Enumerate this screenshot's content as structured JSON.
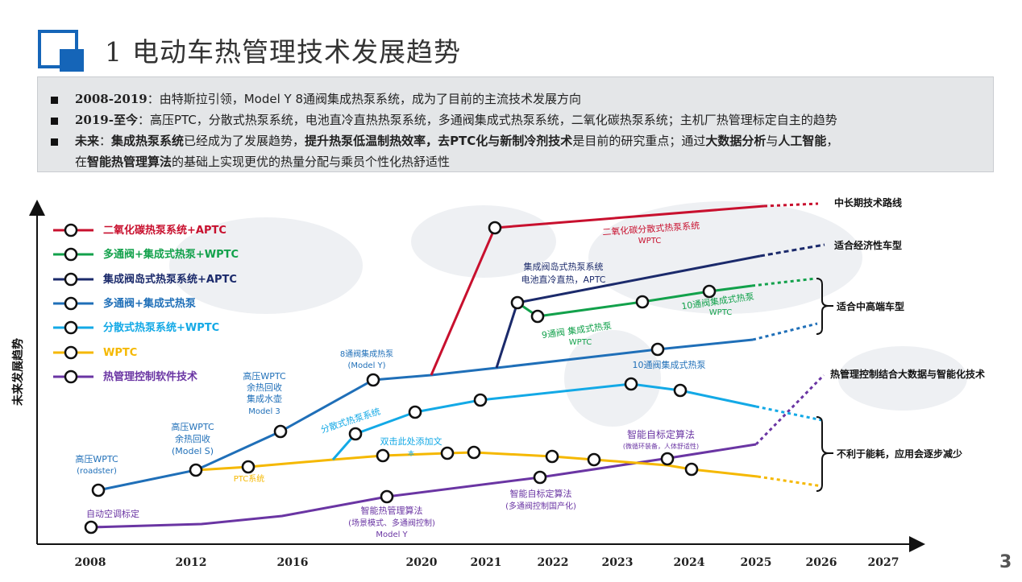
{
  "header": {
    "number": "1",
    "title": "电动车热管理技术发展趋势"
  },
  "summary": {
    "row1": {
      "years": "2008-2019",
      "text": "：由特斯拉引领，Model Y 8通阀集成热泵系统，成为了目前的主流技术发展方向"
    },
    "row2": {
      "years": "2019-至今",
      "text": "：高压PTC，分散式热泵系统，电池直冷直热热泵系统，多通阀集成式热泵系统，二氧化碳热泵系统；主机厂热管理标定自主的趋势"
    },
    "row3": {
      "lead": "未来",
      "p1": "：",
      "b1": "集成热泵系统",
      "p2": "已经成为了发展趋势，",
      "b2": "提升热泵低温制热效率，去PTC化与新制冷剂技术",
      "p3": "是目前的研究重点；通过",
      "b3": "大数据分析",
      "p4": "与",
      "b4": "人工智能",
      "p5": "，",
      "cont_b": "智能热管理算法",
      "cont_pre": "在",
      "cont_post": "的基础上实现更优的热量分配与乘员个性化热舒适性"
    }
  },
  "axis": {
    "ylabel": "未来发展趋势",
    "ticks": [
      "2008",
      "2012",
      "2016",
      "2020",
      "2021",
      "2022",
      "2023",
      "2024",
      "2025",
      "2026",
      "2027"
    ]
  },
  "legend": [
    {
      "label": "二氧化碳热泵系统+APTC",
      "color": "#c8102e"
    },
    {
      "label": "多通阀+集成式热泵+WPTC",
      "color": "#12a14b"
    },
    {
      "label": "集成阀岛式热泵系统+APTC",
      "color": "#1b2a6b"
    },
    {
      "label": "多通阀+集成式热泵",
      "color": "#1f6fb8"
    },
    {
      "label": "分散式热泵系统+WPTC",
      "color": "#13a9e6"
    },
    {
      "label": "WPTC",
      "color": "#f5b800"
    },
    {
      "label": "热管理控制软件技术",
      "color": "#6a35a3"
    }
  ],
  "annotations": {
    "a1": "高压WPTC",
    "a1b": "(roadster)",
    "a2": "高压WPTC",
    "a2b": "余热回收",
    "a2c": "(Model S)",
    "a3": "高压WPTC",
    "a3b": "余热回收",
    "a3c": "集成水壶",
    "a3d": "Model 3",
    "a4": "8通阀集成热泵",
    "a4b": "(Model Y)",
    "a5": "分散式热泵系统",
    "a6": "双击此处添加文",
    "a6b": "本",
    "a7": "PTC系统",
    "a8": "自动空调标定",
    "a9": "智能热管理算法",
    "a9b": "(场景模式、多通阀控制)",
    "a9c": "Model Y",
    "a10": "智能自标定算法",
    "a10b": "(多通阀控制国产化)",
    "a11": "智能自标定算法",
    "a11b": "(微循环装备，人体舒适性)",
    "a12": "10通阀集成式热泵",
    "a13": "集成阀岛式热泵系统",
    "a13b": "电池直冷直热，APTC",
    "a14": "9通阀 集成式热泵",
    "a14b": "WPTC",
    "a15": "10通阀集成式热泵",
    "a15b": "WPTC",
    "a16": "二氧化碳分散式热泵系统",
    "a16b": "WPTC"
  },
  "right_labels": {
    "r1": "中长期技术路线",
    "r2": "适合经济性车型",
    "r3": "适合中高端车型",
    "r4": "热管理控制结合大数据与智能化技术",
    "r5": "不利于能耗，应用会逐步减少"
  },
  "page_number": "3"
}
